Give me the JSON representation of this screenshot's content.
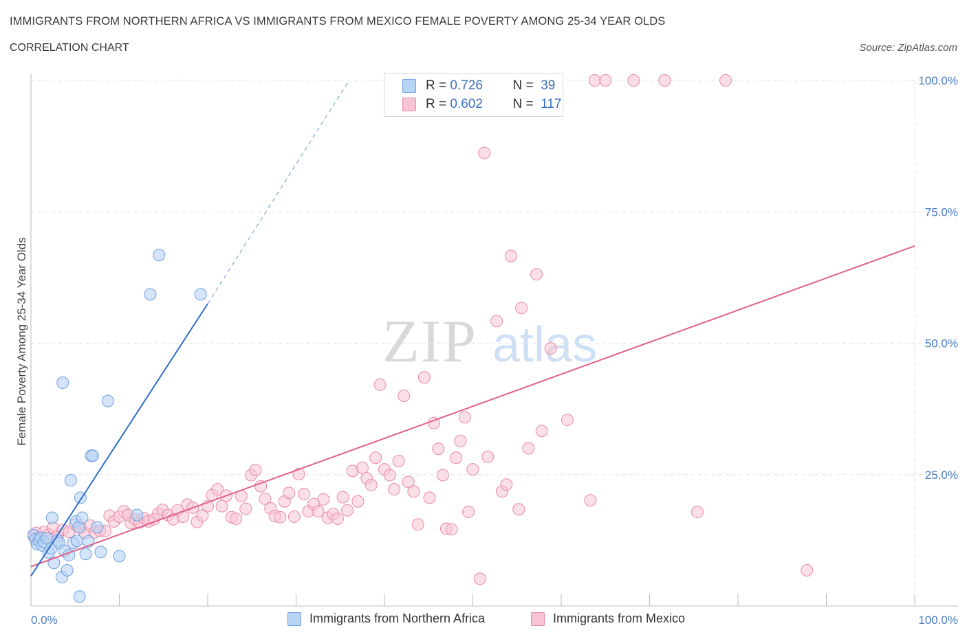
{
  "header": {
    "title": "IMMIGRANTS FROM NORTHERN AFRICA VS IMMIGRANTS FROM MEXICO FEMALE POVERTY AMONG 25-34 YEAR OLDS",
    "subtitle": "CORRELATION CHART",
    "source": "Source: ZipAtlas.com"
  },
  "legend": {
    "rows": [
      {
        "r_label": "R =",
        "r_value": "0.726",
        "n_label": "N =",
        "n_value": "39"
      },
      {
        "r_label": "R =",
        "r_value": "0.602",
        "n_label": "N =",
        "n_value": "117"
      }
    ]
  },
  "bottom_legend": {
    "series_1": "Immigrants from Northern Africa",
    "series_2": "Immigrants from Mexico"
  },
  "watermark": {
    "part1": "ZIP",
    "part2": "atlas"
  },
  "colors": {
    "blue_fill": "#b8d4f5",
    "blue_stroke": "#6e9fe0",
    "blue_line": "#2a6dc9",
    "pink_fill": "#f7c4d4",
    "pink_stroke": "#e98aa8",
    "pink_line": "#e0608b",
    "tick_text": "#4a7cc7",
    "grid": "#e2e2e2"
  },
  "chart_data": {
    "type": "scatter",
    "ylabel": "Female Poverty Among 25-34 Year Olds",
    "xlim": [
      0,
      100
    ],
    "ylim": [
      0,
      100
    ],
    "x_ticks": [
      "0.0%",
      "100.0%"
    ],
    "y_ticks": [
      "25.0%",
      "50.0%",
      "75.0%",
      "100.0%"
    ],
    "grid": true,
    "legend_position": "top-center",
    "series": [
      {
        "name": "Immigrants from Northern Africa",
        "points": [
          [
            0.3,
            13.5
          ],
          [
            0.5,
            12.7
          ],
          [
            0.7,
            11.8
          ],
          [
            0.9,
            12.4
          ],
          [
            1.1,
            13.0
          ],
          [
            1.3,
            11.5
          ],
          [
            1.5,
            12.2
          ],
          [
            1.8,
            12.9
          ],
          [
            2.0,
            10.2
          ],
          [
            2.3,
            11.0
          ],
          [
            2.6,
            8.2
          ],
          [
            2.4,
            16.8
          ],
          [
            3.0,
            12.5
          ],
          [
            3.2,
            12.0
          ],
          [
            3.5,
            5.5
          ],
          [
            3.6,
            42.5
          ],
          [
            3.8,
            10.5
          ],
          [
            4.1,
            6.8
          ],
          [
            4.3,
            9.7
          ],
          [
            4.5,
            23.9
          ],
          [
            4.8,
            12.0
          ],
          [
            5.1,
            16.1
          ],
          [
            5.4,
            15.0
          ],
          [
            5.6,
            20.6
          ],
          [
            5.8,
            16.8
          ],
          [
            6.2,
            9.9
          ],
          [
            6.5,
            12.3
          ],
          [
            6.8,
            28.6
          ],
          [
            7.0,
            28.6
          ],
          [
            7.5,
            15.0
          ],
          [
            7.9,
            10.3
          ],
          [
            8.7,
            39.0
          ],
          [
            10.0,
            9.5
          ],
          [
            12.0,
            17.3
          ],
          [
            5.5,
            1.8
          ],
          [
            13.5,
            59.3
          ],
          [
            14.5,
            66.8
          ],
          [
            19.2,
            59.3
          ],
          [
            5.2,
            12.4
          ]
        ],
        "trend": {
          "x1": 0,
          "y1": 5.7,
          "x2": 20,
          "y2": 57.5,
          "dashed_to_x": 36,
          "dashed_to_y": 100
        }
      },
      {
        "name": "Immigrants from Mexico",
        "points": [
          [
            0.3,
            13.3
          ],
          [
            0.6,
            13.9
          ],
          [
            1.0,
            12.8
          ],
          [
            1.5,
            14.1
          ],
          [
            2.0,
            13.6
          ],
          [
            2.5,
            14.9
          ],
          [
            3.0,
            13.3
          ],
          [
            3.6,
            14.5
          ],
          [
            4.3,
            14.1
          ],
          [
            5.0,
            15.5
          ],
          [
            5.6,
            14.9
          ],
          [
            6.1,
            13.9
          ],
          [
            6.7,
            15.3
          ],
          [
            7.2,
            14.0
          ],
          [
            7.8,
            14.3
          ],
          [
            8.4,
            14.3
          ],
          [
            8.9,
            17.2
          ],
          [
            9.4,
            16.1
          ],
          [
            10.0,
            17.0
          ],
          [
            10.5,
            18.0
          ],
          [
            11.0,
            17.3
          ],
          [
            11.3,
            15.8
          ],
          [
            11.8,
            16.5
          ],
          [
            12.3,
            15.9
          ],
          [
            12.8,
            16.7
          ],
          [
            13.3,
            16.1
          ],
          [
            13.9,
            16.5
          ],
          [
            14.4,
            17.6
          ],
          [
            14.9,
            18.3
          ],
          [
            15.5,
            17.3
          ],
          [
            16.1,
            16.5
          ],
          [
            16.6,
            18.2
          ],
          [
            17.2,
            17.0
          ],
          [
            17.7,
            19.3
          ],
          [
            18.3,
            18.7
          ],
          [
            18.8,
            16.0
          ],
          [
            19.4,
            17.2
          ],
          [
            20.0,
            19.0
          ],
          [
            20.5,
            21.1
          ],
          [
            21.1,
            22.2
          ],
          [
            21.6,
            19.0
          ],
          [
            22.1,
            21.0
          ],
          [
            22.7,
            16.9
          ],
          [
            23.2,
            16.6
          ],
          [
            23.8,
            20.9
          ],
          [
            24.3,
            18.5
          ],
          [
            24.9,
            24.9
          ],
          [
            25.4,
            25.9
          ],
          [
            26.0,
            22.8
          ],
          [
            26.5,
            20.4
          ],
          [
            27.1,
            18.6
          ],
          [
            27.6,
            17.1
          ],
          [
            28.2,
            16.9
          ],
          [
            28.7,
            19.9
          ],
          [
            29.2,
            21.5
          ],
          [
            29.8,
            17.0
          ],
          [
            30.3,
            25.1
          ],
          [
            30.9,
            21.3
          ],
          [
            31.4,
            18.0
          ],
          [
            32.0,
            19.4
          ],
          [
            32.5,
            18.0
          ],
          [
            33.1,
            20.3
          ],
          [
            33.6,
            16.8
          ],
          [
            34.2,
            17.5
          ],
          [
            34.7,
            16.6
          ],
          [
            35.3,
            20.7
          ],
          [
            35.8,
            18.2
          ],
          [
            36.4,
            25.7
          ],
          [
            37.0,
            19.9
          ],
          [
            37.5,
            26.3
          ],
          [
            38.0,
            24.3
          ],
          [
            38.5,
            23.0
          ],
          [
            39.0,
            28.2
          ],
          [
            39.5,
            42.1
          ],
          [
            40.0,
            26.0
          ],
          [
            40.6,
            24.9
          ],
          [
            41.1,
            22.2
          ],
          [
            41.6,
            27.6
          ],
          [
            42.2,
            40.0
          ],
          [
            42.7,
            23.6
          ],
          [
            43.3,
            21.8
          ],
          [
            43.8,
            15.5
          ],
          [
            44.5,
            43.5
          ],
          [
            45.1,
            20.6
          ],
          [
            45.6,
            34.8
          ],
          [
            46.1,
            29.9
          ],
          [
            46.6,
            24.9
          ],
          [
            47.0,
            14.7
          ],
          [
            47.6,
            14.6
          ],
          [
            48.1,
            28.2
          ],
          [
            48.6,
            31.4
          ],
          [
            49.1,
            35.9
          ],
          [
            49.5,
            17.9
          ],
          [
            50.0,
            26.0
          ],
          [
            50.8,
            5.2
          ],
          [
            51.3,
            86.2
          ],
          [
            51.7,
            28.4
          ],
          [
            52.7,
            54.2
          ],
          [
            53.3,
            21.8
          ],
          [
            53.8,
            23.1
          ],
          [
            54.3,
            66.6
          ],
          [
            55.2,
            18.4
          ],
          [
            55.5,
            56.7
          ],
          [
            56.3,
            30.0
          ],
          [
            57.2,
            63.1
          ],
          [
            57.8,
            33.3
          ],
          [
            58.8,
            49.0
          ],
          [
            60.7,
            35.4
          ],
          [
            63.3,
            20.1
          ],
          [
            63.8,
            100.0
          ],
          [
            65.0,
            100.0
          ],
          [
            68.2,
            100.0
          ],
          [
            71.7,
            100.0
          ],
          [
            75.4,
            17.9
          ],
          [
            78.6,
            100.0
          ],
          [
            87.8,
            6.8
          ],
          [
            0.8,
            12.9
          ]
        ],
        "trend": {
          "x1": 0,
          "y1": 7.5,
          "x2": 100,
          "y2": 68.5
        }
      }
    ]
  }
}
